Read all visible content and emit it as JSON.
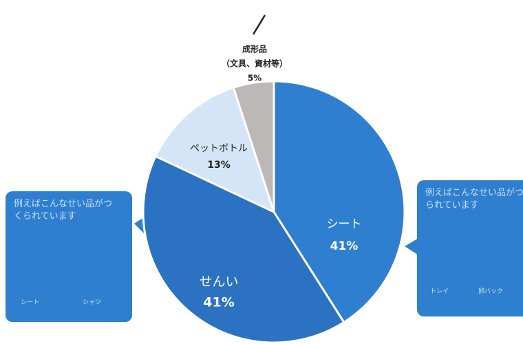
{
  "chart_data": {
    "type": "pie",
    "categories": [
      "シート",
      "せんい",
      "ペットボトル",
      "成形品"
    ],
    "sublabels": [
      null,
      null,
      null,
      "（文具、資材等）"
    ],
    "values": [
      41,
      41,
      13,
      5
    ],
    "value_labels": [
      "41%",
      "41%",
      "13%",
      "5%"
    ],
    "colors": [
      "#2f7fd0",
      "#2b72c2",
      "#d3e5f6",
      "#bdb8b8"
    ],
    "callouts": [
      {
        "text": "例えばこんなせい品がつくられています",
        "items": [
          "シート",
          "シャツ"
        ]
      },
      {
        "text": "例えばこんなせい品がつくられています",
        "items": [
          "トレイ",
          "卵パック"
        ]
      }
    ]
  }
}
